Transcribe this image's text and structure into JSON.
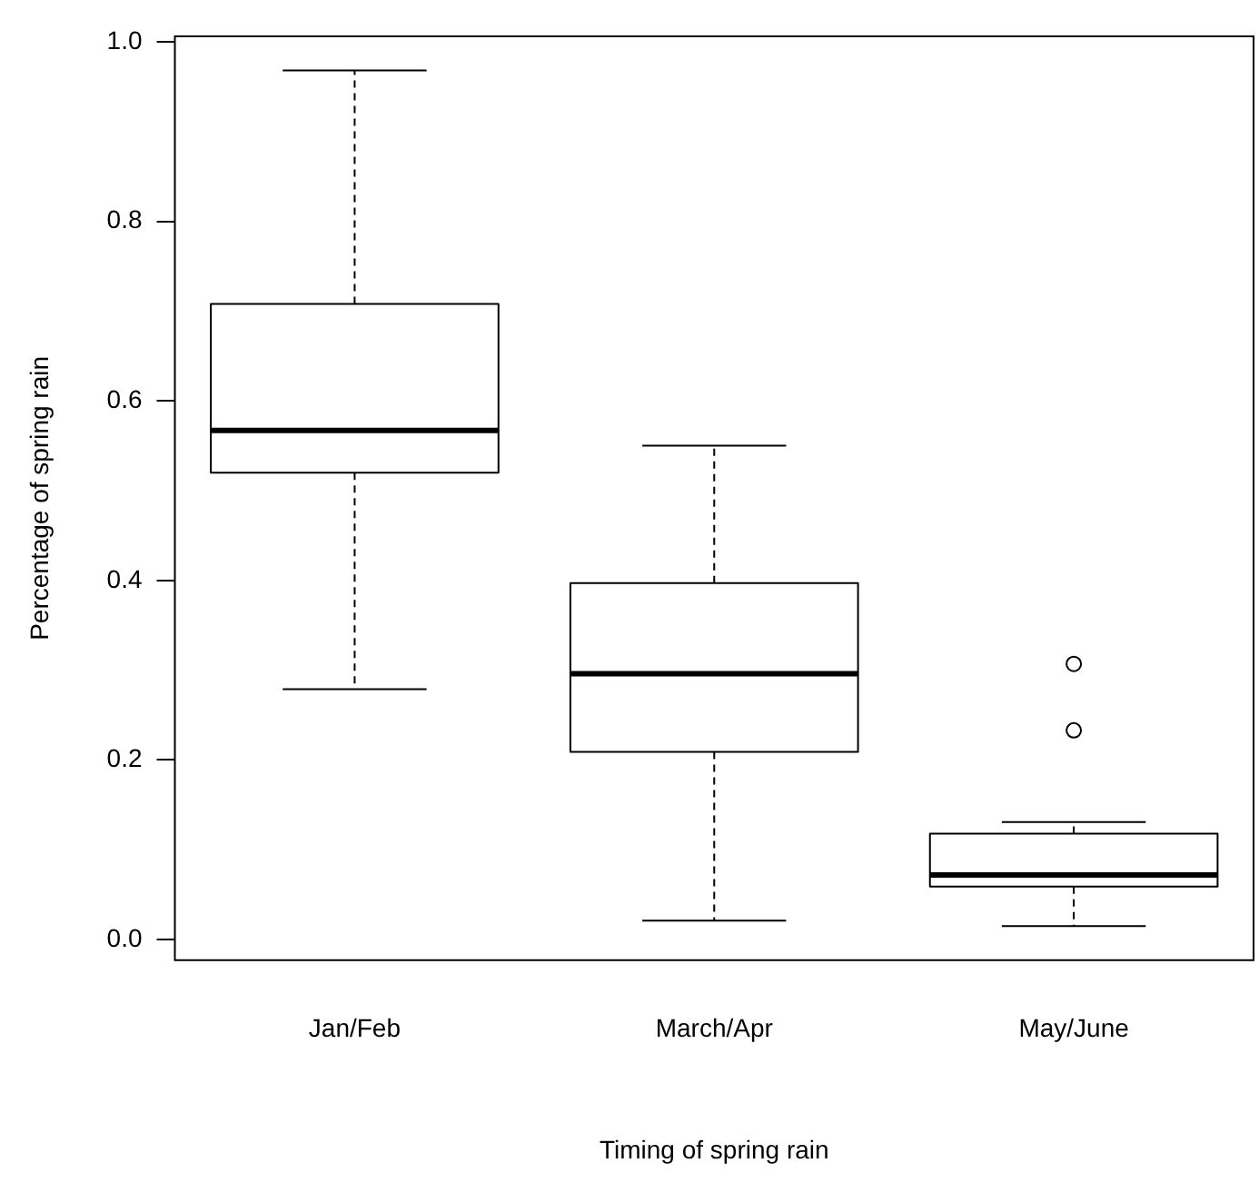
{
  "chart_data": {
    "type": "box",
    "xlabel": "Timing of spring rain",
    "ylabel": "Percentage of spring rain",
    "categories": [
      "Jan/Feb",
      "March/Apr",
      "May/June"
    ],
    "boxes": [
      {
        "low": 0.279,
        "q1": 0.52,
        "median": 0.567,
        "q3": 0.708,
        "high": 0.968
      },
      {
        "low": 0.021,
        "q1": 0.209,
        "median": 0.296,
        "q3": 0.397,
        "high": 0.55
      },
      {
        "low": 0.015,
        "q1": 0.059,
        "median": 0.072,
        "q3": 0.118,
        "high": 0.131,
        "outliers": [
          0.307,
          0.233
        ]
      }
    ],
    "color": "#000000",
    "ylim": [
      -0.023,
      1.006
    ],
    "yticks": [
      {
        "value": 0,
        "label": "0.0"
      },
      {
        "value": 0.2,
        "label": "0.2"
      },
      {
        "value": 0.4,
        "label": "0.4"
      },
      {
        "value": 0.6,
        "label": "0.6"
      },
      {
        "value": 0.8,
        "label": "0.8"
      },
      {
        "value": 1,
        "label": "1.0"
      }
    ],
    "grid": false,
    "legend": false
  }
}
